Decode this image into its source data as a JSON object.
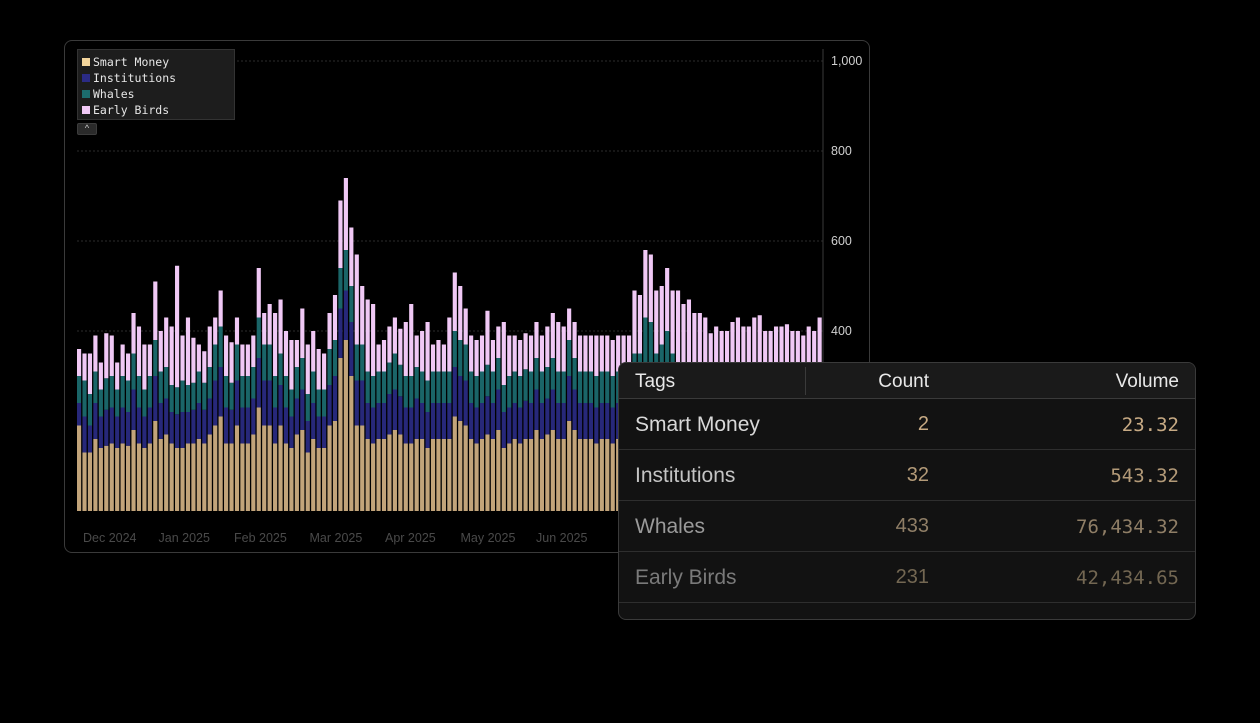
{
  "chart_data": {
    "type": "bar",
    "stacked": true,
    "x_ticks": [
      "Dec 2024",
      "Jan 2025",
      "Feb 2025",
      "Mar 2025",
      "Apr 2025",
      "May 2025",
      "Jun 2025"
    ],
    "y_ticks": [
      400,
      600,
      800,
      "1,000"
    ],
    "ylim": [
      0,
      1000
    ],
    "grid": true,
    "legend": "top-left",
    "series": [
      {
        "name": "Smart Money",
        "color": "#c2a47a",
        "values": [
          190,
          130,
          130,
          160,
          140,
          145,
          150,
          140,
          150,
          145,
          180,
          150,
          140,
          150,
          200,
          160,
          170,
          150,
          140,
          140,
          150,
          150,
          160,
          150,
          170,
          190,
          210,
          150,
          150,
          190,
          150,
          150,
          170,
          230,
          190,
          190,
          150,
          190,
          150,
          140,
          170,
          180,
          130,
          160,
          140,
          140,
          190,
          200,
          340,
          380,
          300,
          190,
          190,
          160,
          150,
          160,
          160,
          170,
          180,
          170,
          150,
          150,
          160,
          160,
          140,
          160,
          160,
          160,
          160,
          210,
          200,
          190,
          160,
          150,
          160,
          170,
          160,
          180,
          140,
          150,
          160,
          150,
          160,
          160,
          180,
          160,
          170,
          180,
          160,
          160,
          200,
          180,
          160,
          160,
          160,
          150,
          160,
          160,
          150,
          160,
          160,
          160,
          180,
          180,
          200,
          200,
          180,
          190,
          200,
          180,
          160,
          160,
          160,
          150,
          160,
          150,
          150,
          160,
          150,
          150,
          150,
          160,
          160,
          160,
          160,
          170,
          160,
          160,
          160,
          160,
          170,
          160,
          160,
          150,
          160,
          150,
          160
        ]
      },
      {
        "name": "Institutions",
        "color": "#27287a",
        "values": [
          50,
          80,
          60,
          80,
          70,
          80,
          80,
          70,
          80,
          75,
          90,
          80,
          70,
          80,
          100,
          80,
          80,
          70,
          75,
          80,
          70,
          75,
          80,
          75,
          80,
          100,
          110,
          80,
          75,
          100,
          80,
          80,
          80,
          110,
          100,
          100,
          80,
          90,
          80,
          70,
          80,
          90,
          70,
          80,
          70,
          70,
          90,
          100,
          110,
          110,
          120,
          100,
          100,
          80,
          80,
          80,
          80,
          90,
          90,
          85,
          80,
          80,
          90,
          80,
          80,
          80,
          80,
          80,
          80,
          110,
          100,
          100,
          80,
          80,
          80,
          85,
          80,
          90,
          80,
          80,
          80,
          80,
          85,
          80,
          90,
          80,
          80,
          90,
          80,
          80,
          100,
          90,
          80,
          80,
          80,
          80,
          80,
          80,
          80,
          80,
          80,
          80,
          90,
          90,
          130,
          120,
          90,
          100,
          110,
          90,
          80,
          80,
          80,
          80,
          80,
          80,
          75,
          80,
          80,
          80,
          80,
          80,
          80,
          80,
          80,
          85,
          80,
          80,
          80,
          80,
          85,
          80,
          80,
          80,
          80,
          80,
          80
        ]
      },
      {
        "name": "Whales",
        "color": "#1a6568",
        "values": [
          60,
          80,
          70,
          70,
          60,
          70,
          70,
          60,
          70,
          70,
          80,
          70,
          60,
          70,
          80,
          70,
          70,
          60,
          60,
          70,
          60,
          60,
          70,
          60,
          70,
          80,
          90,
          70,
          60,
          80,
          70,
          70,
          70,
          90,
          80,
          80,
          70,
          70,
          70,
          60,
          70,
          70,
          60,
          70,
          60,
          60,
          80,
          80,
          90,
          90,
          80,
          80,
          80,
          70,
          70,
          70,
          70,
          70,
          80,
          70,
          70,
          70,
          70,
          70,
          70,
          70,
          70,
          70,
          70,
          80,
          80,
          80,
          70,
          70,
          70,
          70,
          70,
          70,
          60,
          70,
          70,
          70,
          70,
          70,
          70,
          70,
          70,
          70,
          70,
          70,
          80,
          70,
          70,
          70,
          70,
          70,
          70,
          70,
          70,
          70,
          70,
          70,
          80,
          80,
          100,
          100,
          80,
          80,
          90,
          80,
          70,
          70,
          70,
          70,
          70,
          70,
          70,
          70,
          70,
          70,
          70,
          70,
          70,
          70,
          70,
          70,
          70,
          70,
          70,
          70,
          70,
          70,
          70,
          70,
          70,
          70,
          70
        ]
      },
      {
        "name": "Early Birds",
        "color": "#f0c8f5",
        "values": [
          60,
          60,
          90,
          80,
          60,
          100,
          90,
          60,
          70,
          60,
          90,
          110,
          100,
          70,
          130,
          90,
          110,
          130,
          270,
          100,
          150,
          100,
          60,
          70,
          90,
          60,
          80,
          90,
          90,
          60,
          70,
          70,
          70,
          110,
          70,
          90,
          140,
          120,
          100,
          110,
          60,
          110,
          110,
          90,
          90,
          80,
          80,
          100,
          150,
          160,
          130,
          200,
          130,
          160,
          160,
          60,
          70,
          80,
          80,
          80,
          120,
          160,
          70,
          90,
          130,
          60,
          70,
          60,
          120,
          130,
          120,
          80,
          80,
          80,
          80,
          120,
          70,
          70,
          140,
          90,
          80,
          80,
          80,
          80,
          80,
          80,
          90,
          100,
          110,
          100,
          70,
          80,
          80,
          80,
          80,
          90,
          80,
          80,
          80,
          80,
          80,
          80,
          140,
          130,
          150,
          150,
          140,
          130,
          140,
          140,
          180,
          150,
          160,
          140,
          130,
          130,
          100,
          100,
          100,
          100,
          120,
          120,
          100,
          100,
          120,
          110,
          90,
          90,
          100,
          100,
          90,
          90,
          90,
          90,
          100,
          100,
          120
        ]
      }
    ]
  },
  "legend": {
    "items": [
      {
        "label": "Smart Money",
        "color": "#f3d59c"
      },
      {
        "label": "Institutions",
        "color": "#2b2b86"
      },
      {
        "label": "Whales",
        "color": "#1c6c6e"
      },
      {
        "label": "Early Birds",
        "color": "#f1c9f6"
      }
    ],
    "collapse_glyph": "^"
  },
  "table": {
    "headers": {
      "tags": "Tags",
      "count": "Count",
      "volume": "Volume"
    },
    "rows": [
      {
        "tag": "Smart Money",
        "count": "2",
        "volume": "23.32",
        "tag_color": "#d8d8d8",
        "num_color": "#c7aa84"
      },
      {
        "tag": "Institutions",
        "count": "32",
        "volume": "543.32",
        "tag_color": "#c4c4c4",
        "num_color": "#b39a78"
      },
      {
        "tag": "Whales",
        "count": "433",
        "volume": "76,434.32",
        "tag_color": "#9a9a9a",
        "num_color": "#8f7e66"
      },
      {
        "tag": "Early Birds",
        "count": "231",
        "volume": "42,434.65",
        "tag_color": "#7a7a7a",
        "num_color": "#736752"
      }
    ]
  }
}
